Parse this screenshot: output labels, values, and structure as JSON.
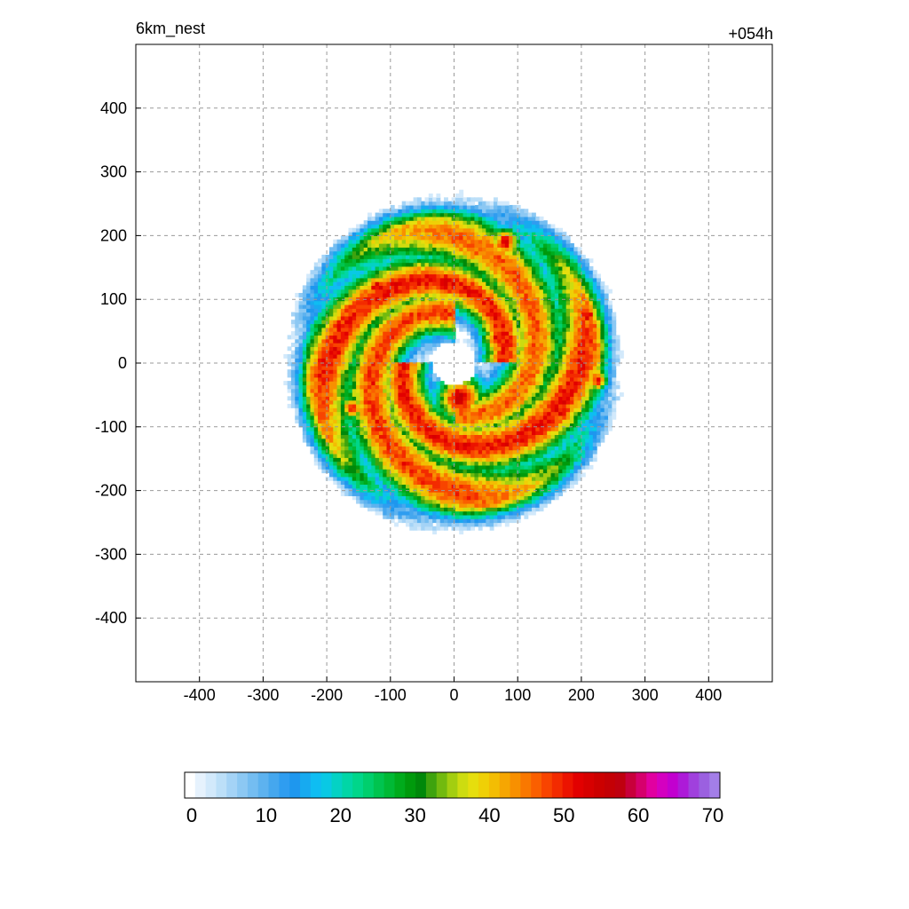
{
  "chart_data": {
    "type": "heatmap",
    "title_left": "6km_nest",
    "title_right": "+054h",
    "xlabel": "",
    "ylabel": "",
    "xlim": [
      -500,
      500
    ],
    "ylim": [
      -500,
      500
    ],
    "x_ticks": [
      -400,
      -300,
      -200,
      -100,
      0,
      100,
      200,
      300,
      400
    ],
    "y_ticks": [
      400,
      300,
      200,
      100,
      0,
      -100,
      -200,
      -300,
      -400
    ],
    "grid": true,
    "colorbar": {
      "min": 0,
      "max": 70,
      "ticks": [
        0,
        10,
        20,
        30,
        40,
        50,
        60,
        70
      ],
      "colors": [
        "#ffffff",
        "#e6f2fd",
        "#d2e9fb",
        "#bcdff8",
        "#a4d3f6",
        "#8cc8f3",
        "#74bdf1",
        "#5db2ef",
        "#45a7ee",
        "#2f9df0",
        "#1e97ee",
        "#17aaf0",
        "#0fbdf2",
        "#09c9e4",
        "#04d2c4",
        "#01d6a6",
        "#00d68a",
        "#00cf6d",
        "#00c44f",
        "#00b935",
        "#00ab1c",
        "#009a0c",
        "#00880a",
        "#3ea30e",
        "#72ba0f",
        "#a3ce10",
        "#cddc10",
        "#e6de0d",
        "#efd006",
        "#f3bd03",
        "#f6a602",
        "#f89000",
        "#f97800",
        "#fa5f00",
        "#f84400",
        "#f32b00",
        "#ec1300",
        "#e20000",
        "#d70000",
        "#cc0000",
        "#c40005",
        "#bf000f",
        "#c8003b",
        "#d6006c",
        "#e100a0",
        "#d400c0",
        "#c200cf",
        "#ad1ad8",
        "#a040dd",
        "#9b60e0",
        "#a37ee8"
      ]
    },
    "structures": [
      {
        "kind": "spiral_band",
        "r0": 30,
        "growth": 0.3,
        "theta_start": 0,
        "theta_end": 4.6,
        "peak": 50,
        "width": 20
      },
      {
        "kind": "spiral_band",
        "r0": 30,
        "growth": 0.3,
        "theta_start": 1.57,
        "theta_end": 6.2,
        "peak": 48,
        "width": 22
      },
      {
        "kind": "spiral_band",
        "r0": 30,
        "growth": 0.3,
        "theta_start": 3.14,
        "theta_end": 7.7,
        "peak": 50,
        "width": 22
      },
      {
        "kind": "spiral_band",
        "r0": 30,
        "growth": 0.3,
        "theta_start": 4.71,
        "theta_end": 9.2,
        "peak": 46,
        "width": 22
      },
      {
        "kind": "blob",
        "x": 10,
        "y": -55,
        "value": 54,
        "size": 28
      },
      {
        "kind": "blob",
        "x": 80,
        "y": 190,
        "value": 52,
        "size": 18
      },
      {
        "kind": "blob",
        "x": 210,
        "y": 75,
        "value": 52,
        "size": 16
      },
      {
        "kind": "blob",
        "x": 225,
        "y": -25,
        "value": 50,
        "size": 16
      },
      {
        "kind": "blob",
        "x": 170,
        "y": -75,
        "value": 52,
        "size": 20
      },
      {
        "kind": "blob",
        "x": -120,
        "y": 120,
        "value": 52,
        "size": 18
      },
      {
        "kind": "blob",
        "x": -180,
        "y": 20,
        "value": 50,
        "size": 14
      },
      {
        "kind": "blob",
        "x": -160,
        "y": -70,
        "value": 50,
        "size": 14
      },
      {
        "kind": "blob",
        "x": -40,
        "y": -95,
        "value": 50,
        "size": 16
      },
      {
        "kind": "blob",
        "x": 70,
        "y": 40,
        "value": 52,
        "size": 20
      },
      {
        "kind": "blob",
        "x": -30,
        "y": -175,
        "value": 46,
        "size": 12
      },
      {
        "kind": "blob",
        "x": 50,
        "y": -130,
        "value": 48,
        "size": 16
      }
    ],
    "outer_radius": 230
  }
}
